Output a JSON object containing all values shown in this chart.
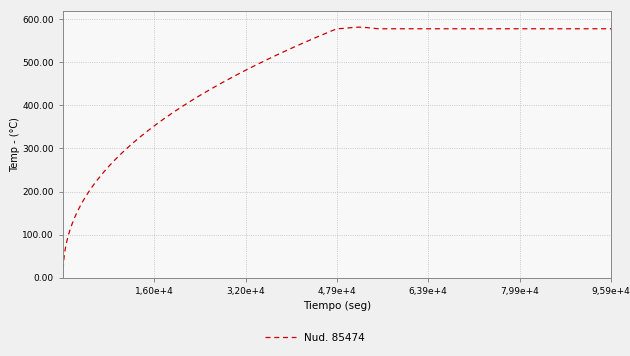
{
  "xlabel": "Tiempo (seg)",
  "ylabel": "Temp - (°C)",
  "line_color": "#cc0000",
  "legend_label": "Nud. 85474",
  "background_color": "#f0f0f0",
  "plot_bg_color": "#f8f8f8",
  "grid_color": "#aaaaaa",
  "xlim": [
    0,
    95900
  ],
  "ylim": [
    0,
    620
  ],
  "xtick_vals": [
    16000,
    32000,
    47900,
    63900,
    79900,
    95900
  ],
  "xtick_labels": [
    "1,60e+4",
    "3,20e+4",
    "4,79e+4",
    "6,39e+4",
    "7,99e+4",
    "9,59e+4"
  ],
  "yticks": [
    0,
    100,
    200,
    300,
    400,
    500,
    600
  ],
  "xlabel_fontsize": 7.5,
  "ylabel_fontsize": 7,
  "tick_fontsize": 6.5,
  "legend_fontsize": 7.5,
  "T_start": 0,
  "T_plateau": 578,
  "t_inflection": 47900,
  "t_end": 95900
}
